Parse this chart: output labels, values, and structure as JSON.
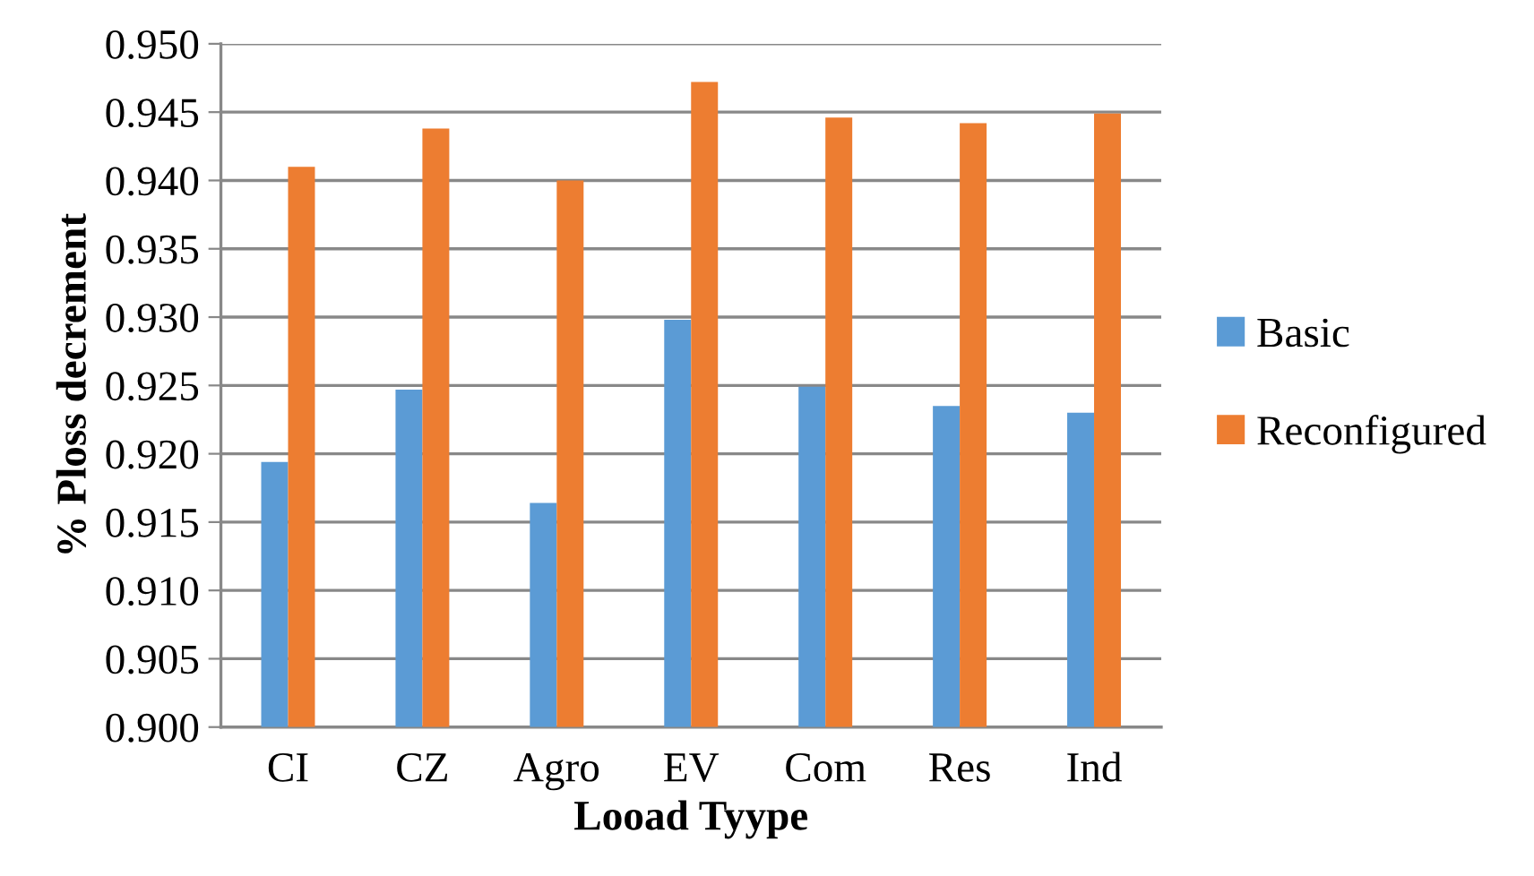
{
  "chart_data": {
    "type": "bar",
    "xlabel": "Looad Tyype",
    "ylabel": "% Ploss decrement",
    "categories": [
      "CI",
      "CZ",
      "Agro",
      "EV",
      "Com",
      "Res",
      "Ind"
    ],
    "series": [
      {
        "name": "Basic",
        "color": "#5b9bd5",
        "values": [
          0.9194,
          0.9247,
          0.9164,
          0.9298,
          0.9249,
          0.9235,
          0.923
        ]
      },
      {
        "name": "Reconfigured",
        "color": "#ed7d31",
        "values": [
          0.941,
          0.9438,
          0.94,
          0.9472,
          0.9446,
          0.9442,
          0.9449
        ]
      }
    ],
    "ylim": [
      0.9,
      0.95
    ],
    "yticks": [
      {
        "value": 0.9,
        "label": "0.900"
      },
      {
        "value": 0.905,
        "label": "0.905"
      },
      {
        "value": 0.91,
        "label": "0.910"
      },
      {
        "value": 0.915,
        "label": "0.915"
      },
      {
        "value": 0.92,
        "label": "0.920"
      },
      {
        "value": 0.925,
        "label": "0.925"
      },
      {
        "value": 0.93,
        "label": "0.930"
      },
      {
        "value": 0.935,
        "label": "0.935"
      },
      {
        "value": 0.94,
        "label": "0.940"
      },
      {
        "value": 0.945,
        "label": "0.945"
      },
      {
        "value": 0.95,
        "label": "0.950"
      }
    ],
    "grid": "y",
    "legend": "right"
  }
}
